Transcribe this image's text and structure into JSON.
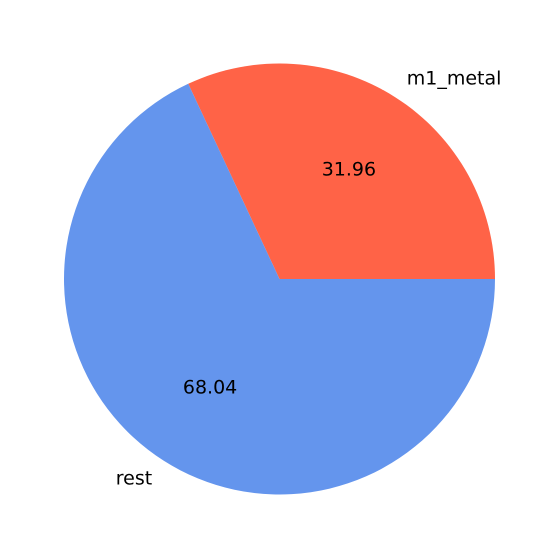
{
  "chart_data": {
    "type": "pie",
    "title": "",
    "start_angle_deg": 0,
    "direction": "counterclockwise",
    "slices": [
      {
        "label": "m1_metal",
        "value": 31.96,
        "value_label": "31.96",
        "color": "#ff6347"
      },
      {
        "label": "rest",
        "value": 68.04,
        "value_label": "68.04",
        "color": "#6495ed"
      }
    ],
    "legend": "none"
  }
}
